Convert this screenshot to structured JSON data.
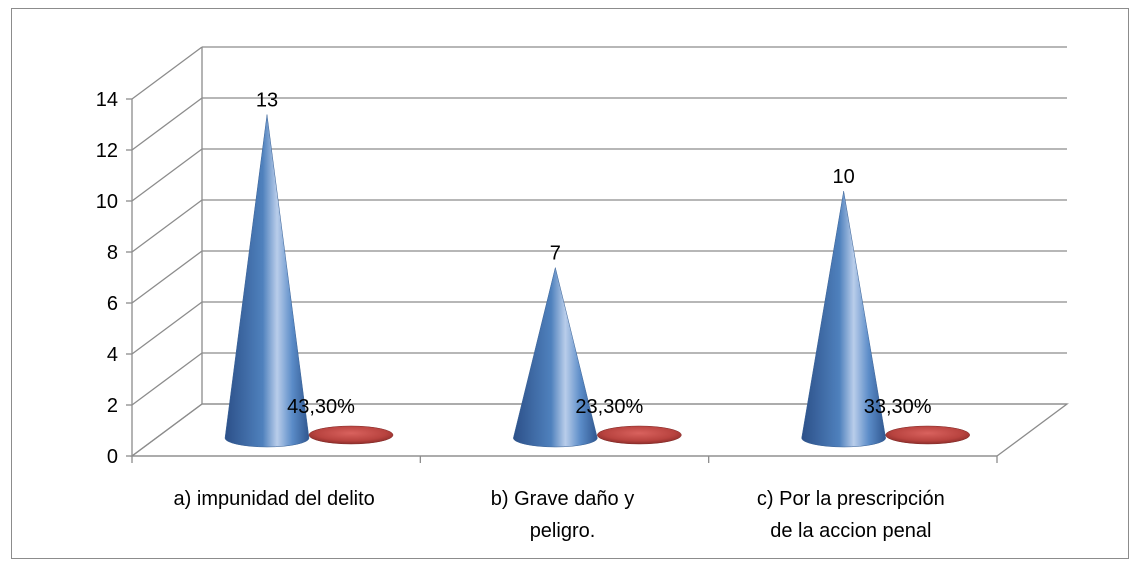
{
  "chart_data": {
    "type": "bar",
    "style": "3d-cone",
    "categories": [
      [
        "a) impunidad del delito"
      ],
      [
        "b) Grave daño y",
        "peligro."
      ],
      [
        "c) Por la prescripción",
        "de la accion penal"
      ]
    ],
    "series": [
      {
        "values": [
          13,
          7,
          10
        ],
        "labels": [
          "13",
          "7",
          "10"
        ],
        "color": "#4f81bd"
      },
      {
        "values": [
          0.433,
          0.233,
          0.333
        ],
        "labels": [
          "43,30%",
          "23,30%",
          "33,30%"
        ],
        "color": "#c0504d"
      }
    ],
    "ylim": [
      0,
      14
    ],
    "yticks": [
      "0",
      "2",
      "4",
      "6",
      "8",
      "10",
      "12",
      "14"
    ],
    "grid": true,
    "legend": "none"
  }
}
